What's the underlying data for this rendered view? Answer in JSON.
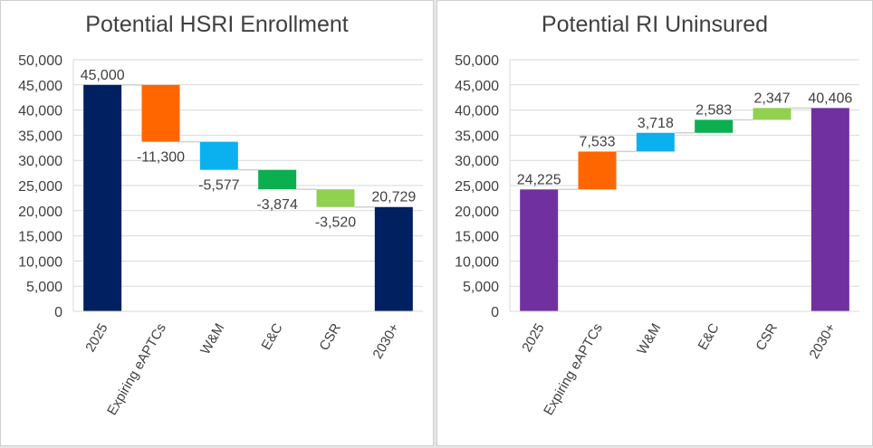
{
  "chart_data": [
    {
      "type": "waterfall",
      "title": "Potential HSRI Enrollment",
      "categories": [
        "2025",
        "Expiring eAPTCs",
        "W&M",
        "E&C",
        "CSR",
        "2030+"
      ],
      "values": [
        45000,
        -11300,
        -5577,
        -3874,
        -3520,
        20729
      ],
      "labels": [
        "45,000",
        "-11,300",
        "-5,577",
        "-3,874",
        "-3,520",
        "20,729"
      ],
      "is_total": [
        true,
        false,
        false,
        false,
        false,
        true
      ],
      "colors": [
        "#002060",
        "#FF6600",
        "#0BB0EE",
        "#0BAF4F",
        "#92D050",
        "#002060"
      ],
      "ylim": [
        0,
        50000
      ],
      "yticks": [
        "0",
        "5,000",
        "10,000",
        "15,000",
        "20,000",
        "25,000",
        "30,000",
        "35,000",
        "40,000",
        "45,000",
        "50,000"
      ],
      "grid": true
    },
    {
      "type": "waterfall",
      "title": "Potential RI Uninsured",
      "categories": [
        "2025",
        "Expiring eAPTCs",
        "W&M",
        "E&C",
        "CSR",
        "2030+"
      ],
      "values": [
        24225,
        7533,
        3718,
        2583,
        2347,
        40406
      ],
      "labels": [
        "24,225",
        "7,533",
        "3,718",
        "2,583",
        "2,347",
        "40,406"
      ],
      "is_total": [
        true,
        false,
        false,
        false,
        false,
        true
      ],
      "colors": [
        "#7030A0",
        "#FF6600",
        "#0BB0EE",
        "#0BAF4F",
        "#92D050",
        "#7030A0"
      ],
      "ylim": [
        0,
        50000
      ],
      "yticks": [
        "0",
        "5,000",
        "10,000",
        "15,000",
        "20,000",
        "25,000",
        "30,000",
        "35,000",
        "40,000",
        "45,000",
        "50,000"
      ],
      "grid": true
    }
  ]
}
